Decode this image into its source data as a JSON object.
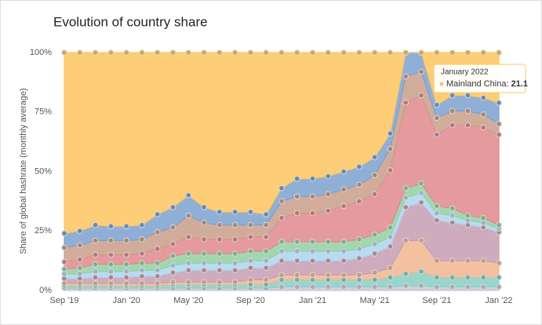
{
  "chart_data": {
    "type": "stacked-area",
    "title": "Evolution of country share",
    "y_label": "Share of global hashrate (monthly average)",
    "categories": [
      "Sep '19",
      null,
      null,
      null,
      "Jan '20",
      null,
      null,
      null,
      "May '20",
      null,
      null,
      null,
      "Sep '20",
      null,
      null,
      null,
      "Jan '21",
      null,
      null,
      null,
      "May '21",
      null,
      null,
      null,
      "Sep '21",
      null,
      null,
      null,
      "Jan '22"
    ],
    "ylim": [
      0,
      100
    ],
    "yticks": [
      {
        "value": 0,
        "label": "0%"
      },
      {
        "value": 25,
        "label": "25%"
      },
      {
        "value": 50,
        "label": "50%"
      },
      {
        "value": 75,
        "label": "75%"
      },
      {
        "value": 100,
        "label": "100%"
      }
    ],
    "grid": true,
    "series": [
      {
        "color": "#c3c9d4",
        "values": [
          1,
          1,
          1,
          1,
          1,
          1,
          1,
          1,
          1,
          1,
          1,
          1,
          1,
          1,
          1.5,
          1.5,
          1.5,
          1.5,
          1.5,
          1.5,
          1.5,
          1.5,
          2,
          2,
          1.5,
          1.5,
          1.5,
          1.5,
          1.5
        ]
      },
      {
        "color": "#86cfc3",
        "values": [
          1,
          1,
          1,
          1,
          1,
          1,
          1,
          1.5,
          1.5,
          1.5,
          1.5,
          1.5,
          1.5,
          1.5,
          3,
          3,
          3,
          3,
          3,
          3,
          3,
          4,
          5,
          6,
          4,
          4,
          4,
          4,
          4
        ]
      },
      {
        "color": "#f1b68e",
        "values": [
          1,
          1,
          1,
          1,
          1,
          1,
          1,
          1,
          1,
          1,
          1,
          1,
          2,
          2,
          2,
          2,
          2,
          2,
          2,
          2,
          3,
          4,
          14,
          13,
          7,
          7,
          7,
          7,
          6
        ]
      },
      {
        "color": "#c79db2",
        "values": [
          2,
          2,
          2.5,
          2.5,
          2.5,
          3,
          3,
          4,
          5,
          5,
          5,
          5,
          5,
          5,
          6,
          6,
          6,
          6,
          6,
          7,
          8,
          9,
          14,
          16,
          17,
          16,
          15,
          14,
          13
        ]
      },
      {
        "color": "#acd5ef",
        "values": [
          2,
          2,
          2.5,
          2.5,
          2.5,
          2.5,
          2.5,
          3,
          3,
          3,
          3,
          3,
          3,
          3,
          4,
          4,
          4,
          4,
          4,
          4,
          4,
          4,
          4,
          4,
          3,
          3,
          2,
          2,
          1.5
        ]
      },
      {
        "color": "#92d0a0",
        "values": [
          2,
          2.5,
          3,
          3,
          3,
          3,
          3,
          4,
          4,
          4,
          4,
          4,
          4,
          4,
          4,
          4,
          4,
          4,
          4,
          4,
          4,
          4,
          4,
          4,
          3,
          3,
          2,
          2,
          1.5
        ]
      },
      {
        "color": "#e0888c",
        "values": [
          3,
          3.5,
          4,
          4,
          4,
          4,
          6,
          5,
          7,
          6,
          6,
          6,
          6,
          6,
          10,
          12,
          12,
          13,
          15,
          16,
          17,
          24,
          36,
          37,
          30,
          35,
          38,
          38,
          38
        ]
      },
      {
        "color": "#c99d8a",
        "values": [
          6,
          6,
          6,
          6,
          6,
          6,
          7,
          7,
          9,
          7,
          6,
          6,
          5,
          5,
          7,
          7,
          7,
          7,
          7,
          7,
          8,
          9,
          11,
          10,
          7,
          6,
          6,
          5.5,
          4.5
        ]
      },
      {
        "color": "#7ca1cf",
        "values": [
          6,
          6,
          6.5,
          6,
          6,
          6,
          7.5,
          8.5,
          8.5,
          6.5,
          5.5,
          5.5,
          5.5,
          4.5,
          5.5,
          7.5,
          7.5,
          7.5,
          7.5,
          7.5,
          7.5,
          6.5,
          10,
          8,
          5.5,
          6.5,
          6.5,
          7,
          8.9
        ]
      },
      {
        "name": "Mainland China",
        "color": "#fdc55f",
        "values": [
          76,
          75,
          72.5,
          73,
          73,
          72.5,
          68,
          65,
          60,
          65,
          67,
          67,
          67,
          68,
          57,
          53,
          53,
          52,
          50,
          48,
          44,
          34,
          0,
          0,
          22,
          18,
          18,
          19,
          21.1
        ]
      }
    ],
    "tooltip": {
      "title": "January 2022",
      "series": 9,
      "index": 28
    }
  }
}
